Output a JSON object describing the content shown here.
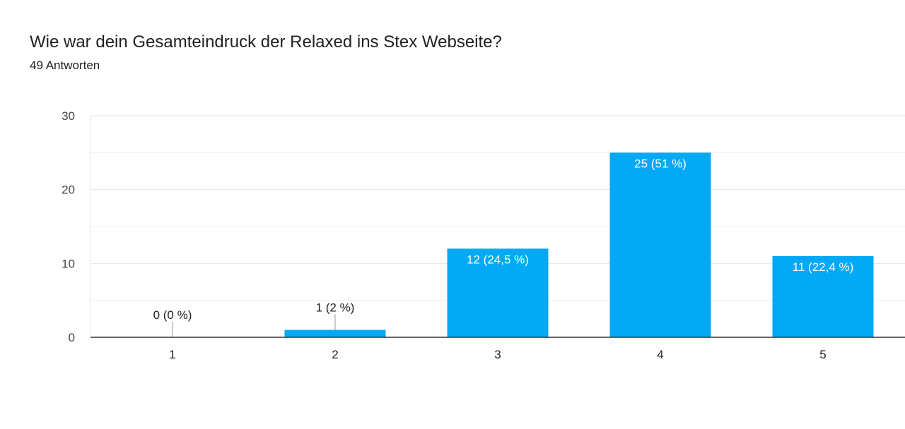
{
  "header": {
    "title": "Wie war dein Gesamteindruck der Relaxed ins Stex Webseite?",
    "subtitle": "49 Antworten"
  },
  "chart_data": {
    "type": "bar",
    "title": "Wie war dein Gesamteindruck der Relaxed ins Stex Webseite?",
    "subtitle": "49 Antworten",
    "categories": [
      "1",
      "2",
      "3",
      "4",
      "5"
    ],
    "values": [
      0,
      1,
      12,
      25,
      11
    ],
    "data_labels": [
      "0 (0 %)",
      "1 (2 %)",
      "12 (24,5 %)",
      "25 (51 %)",
      "11 (22,4 %)"
    ],
    "y_ticks": [
      0,
      10,
      20,
      30
    ],
    "ylim": [
      0,
      30
    ],
    "xlabel": "",
    "ylabel": "",
    "grid": true,
    "legend": "none",
    "bar_color": "#03a9f4"
  }
}
